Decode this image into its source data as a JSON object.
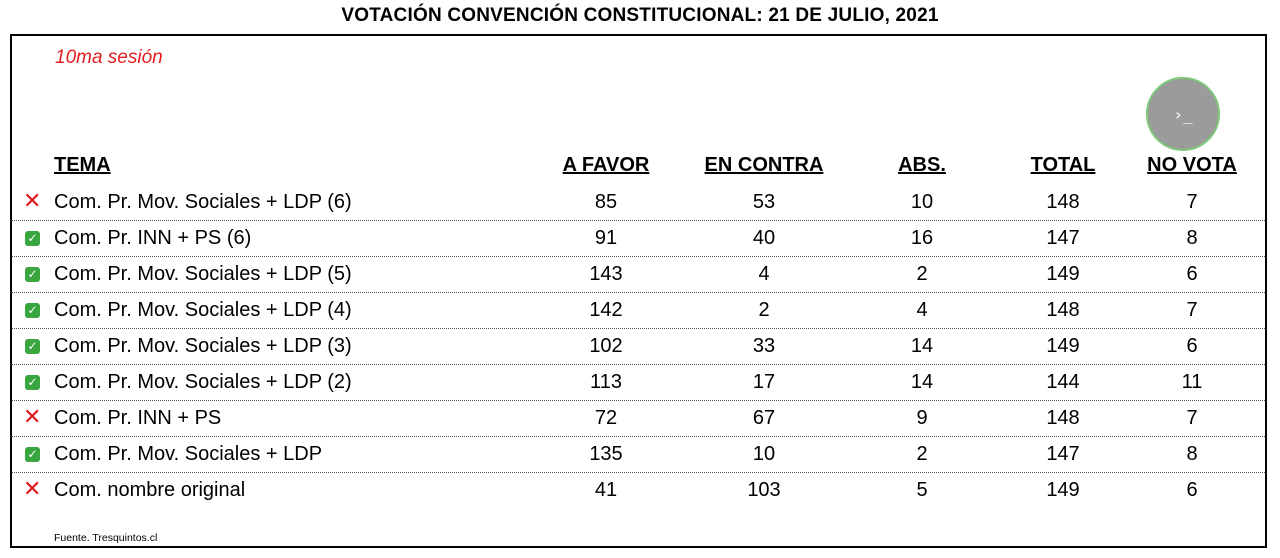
{
  "title": "VOTACIÓN CONVENCIÓN CONSTITUCIONAL: 21 DE JULIO, 2021",
  "session": "10ma sesión",
  "fab_icon": "terminal-icon",
  "fab_symbol": "›_",
  "headers": {
    "tema": "TEMA",
    "a_favor": "A FAVOR",
    "en_contra": "EN CONTRA",
    "abs": "ABS.",
    "total": "TOTAL",
    "no_vota": "NO VOTA"
  },
  "colors": {
    "rejected": "#e0181e",
    "approved": "#3aa63f",
    "session": "#e41e1e"
  },
  "rows": [
    {
      "status": "rejected",
      "icon": "✕",
      "tema": "Com. Pr. Mov. Sociales + LDP (6)",
      "a_favor": "85",
      "en_contra": "53",
      "abs": "10",
      "total": "148",
      "no_vota": "7"
    },
    {
      "status": "approved",
      "icon": "✓",
      "tema": "Com. Pr. INN + PS (6)",
      "a_favor": "91",
      "en_contra": "40",
      "abs": "16",
      "total": "147",
      "no_vota": "8"
    },
    {
      "status": "approved",
      "icon": "✓",
      "tema": "Com. Pr. Mov. Sociales + LDP (5)",
      "a_favor": "143",
      "en_contra": "4",
      "abs": "2",
      "total": "149",
      "no_vota": "6"
    },
    {
      "status": "approved",
      "icon": "✓",
      "tema": "Com. Pr. Mov. Sociales + LDP (4)",
      "a_favor": "142",
      "en_contra": "2",
      "abs": "4",
      "total": "148",
      "no_vota": "7"
    },
    {
      "status": "approved",
      "icon": "✓",
      "tema": "Com. Pr. Mov. Sociales + LDP (3)",
      "a_favor": "102",
      "en_contra": "33",
      "abs": "14",
      "total": "149",
      "no_vota": "6"
    },
    {
      "status": "approved",
      "icon": "✓",
      "tema": "Com. Pr. Mov. Sociales + LDP (2)",
      "a_favor": "113",
      "en_contra": "17",
      "abs": "14",
      "total": "144",
      "no_vota": "11"
    },
    {
      "status": "rejected",
      "icon": "✕",
      "tema": "Com. Pr. INN + PS",
      "a_favor": "72",
      "en_contra": "67",
      "abs": "9",
      "total": "148",
      "no_vota": "7"
    },
    {
      "status": "approved",
      "icon": "✓",
      "tema": "Com. Pr. Mov. Sociales + LDP",
      "a_favor": "135",
      "en_contra": "10",
      "abs": "2",
      "total": "147",
      "no_vota": "8"
    },
    {
      "status": "rejected",
      "icon": "✕",
      "tema": "Com. nombre original",
      "a_favor": "41",
      "en_contra": "103",
      "abs": "5",
      "total": "149",
      "no_vota": "6"
    }
  ],
  "source": "Fuente. Tresquintos.cl"
}
